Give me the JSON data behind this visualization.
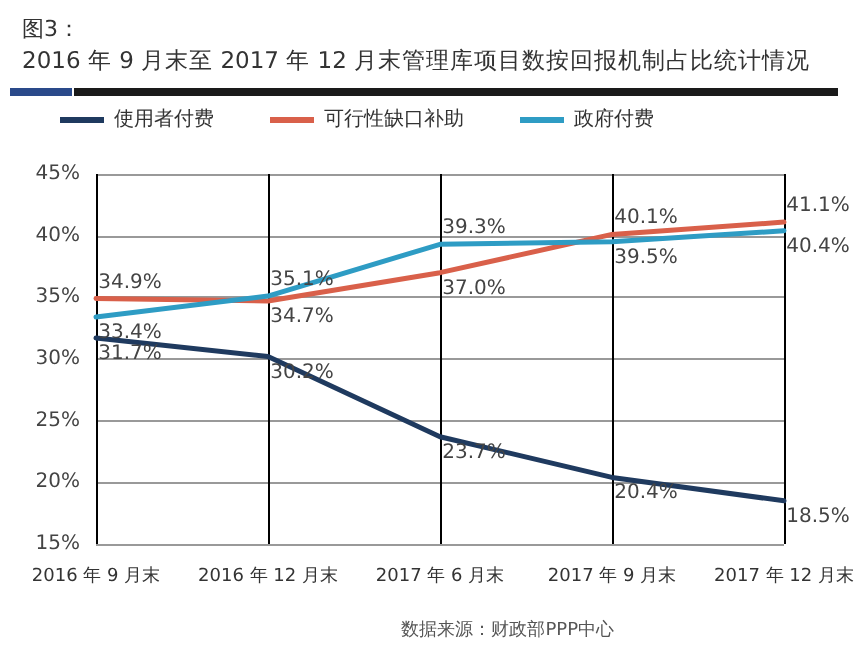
{
  "chart_data": {
    "type": "line",
    "title": "图3：",
    "subtitle": "2016 年 9 月末至 2017 年 12 月末管理库项目数按回报机制占比统计情况",
    "categories": [
      "2016 年 9 月末",
      "2016 年 12 月末",
      "2017 年 6 月末",
      "2017 年 9 月末",
      "2017 年 12 月末"
    ],
    "series": [
      {
        "name": "使用者付费",
        "color": "#1f3a5f",
        "values": [
          31.7,
          30.2,
          23.7,
          20.4,
          18.5
        ],
        "value_labels": [
          "31.7%",
          "30.2%",
          "23.7%",
          "20.4%",
          "18.5%"
        ]
      },
      {
        "name": "可行性缺口补助",
        "color": "#d9604a",
        "values": [
          34.9,
          34.7,
          37.0,
          40.1,
          41.1
        ],
        "value_labels": [
          "34.9%",
          "34.7%",
          "37.0%",
          "40.1%",
          "41.1%"
        ]
      },
      {
        "name": "政府付费",
        "color": "#2e9cc4",
        "values": [
          33.4,
          35.1,
          39.3,
          39.5,
          40.4
        ],
        "value_labels": [
          "33.4%",
          "35.1%",
          "39.3%",
          "39.5%",
          "40.4%"
        ]
      }
    ],
    "ylim": [
      15,
      45
    ],
    "yticks": [
      {
        "value": 15,
        "label": "15%"
      },
      {
        "value": 20,
        "label": "20%"
      },
      {
        "value": 25,
        "label": "25%"
      },
      {
        "value": 30,
        "label": "30%"
      },
      {
        "value": 35,
        "label": "35%"
      },
      {
        "value": 40,
        "label": "40%"
      },
      {
        "value": 45,
        "label": "45%"
      }
    ],
    "grid": true,
    "legend": "top",
    "marker": "none",
    "line_style": "solid",
    "annotations": [
      "数据来源：财政部PPP中心"
    ]
  }
}
